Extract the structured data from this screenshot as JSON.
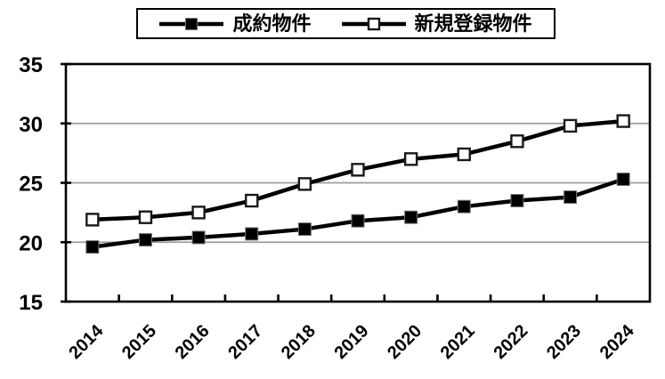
{
  "chart_data": {
    "type": "line",
    "title": "",
    "x_categories": [
      "2014",
      "2015",
      "2016",
      "2017",
      "2018",
      "2019",
      "2020",
      "2021",
      "2022",
      "2023",
      "2024"
    ],
    "series": [
      {
        "name": "成約物件",
        "marker": "filled-square",
        "values": [
          19.6,
          20.2,
          20.4,
          20.7,
          21.1,
          21.8,
          22.1,
          23.0,
          23.5,
          23.8,
          25.3
        ]
      },
      {
        "name": "新規登録物件",
        "marker": "open-square",
        "values": [
          21.9,
          22.1,
          22.5,
          23.5,
          24.9,
          26.1,
          27.0,
          27.4,
          28.5,
          29.8,
          30.2
        ]
      }
    ],
    "ylim": [
      15,
      35
    ],
    "yticks": [
      15,
      20,
      25,
      30,
      35
    ],
    "xlabel": "",
    "ylabel": "",
    "grid": "horizontal",
    "legend_position": "top-center",
    "x_label_rotation_deg": -45,
    "colors": {
      "series_line": "#000000",
      "gridline": "#9d9d9d",
      "plot_border": "#000000",
      "background": "#ffffff",
      "filled_marker_fill": "#000000",
      "open_marker_fill": "#ffffff",
      "marker_stroke": "#1a1a1a"
    }
  }
}
